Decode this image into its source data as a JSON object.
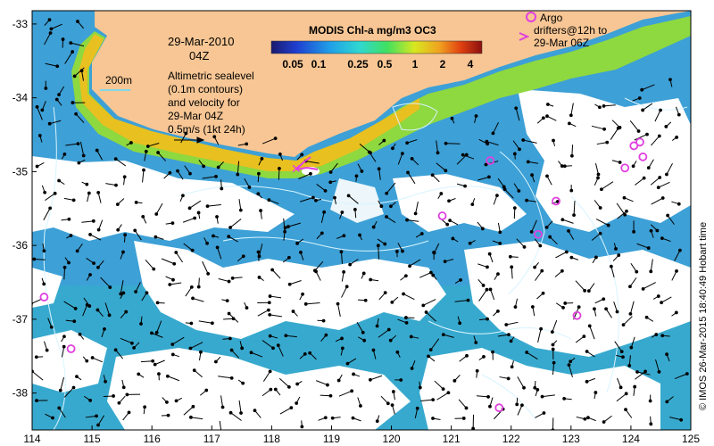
{
  "map": {
    "date_line": "29-Mar-2010",
    "time_line": "04Z",
    "contour_label": "200m",
    "legend_lines": [
      "Altimetric sealevel",
      "(0.1m contours)",
      "and velocity for",
      "29-Mar 04Z",
      "0.5m/s (1kt 24h)"
    ],
    "colorbar": {
      "title": "MODIS Chl-a mg/m3 OC3",
      "ticks": [
        "0.05",
        "0.1",
        "0.25",
        "0.5",
        "1",
        "2",
        "4"
      ]
    },
    "argo_legend": {
      "line1": "Argo",
      "line2": "drifters@12h to",
      "line3": "29-Mar 06Z"
    },
    "credit": "© IMOS 26-Mar-2015 18:40:49 Hobart time",
    "x_ticks": [
      "114",
      "115",
      "116",
      "117",
      "118",
      "119",
      "120",
      "121",
      "122",
      "123",
      "124",
      "125"
    ],
    "y_ticks": [
      "-33",
      "-34",
      "-35",
      "-36",
      "-37",
      "-38"
    ],
    "colors": {
      "land": "#f7c694",
      "ocean": "#3da0d6",
      "argo": "#e040e0",
      "contour": "#d8f4ff"
    },
    "argo_floats": [
      {
        "lon": 114.2,
        "lat": -36.7
      },
      {
        "lon": 114.65,
        "lat": -37.4
      },
      {
        "lon": 120.85,
        "lat": -35.6
      },
      {
        "lon": 121.65,
        "lat": -34.85
      },
      {
        "lon": 122.45,
        "lat": -35.85
      },
      {
        "lon": 122.75,
        "lat": -35.4
      },
      {
        "lon": 123.1,
        "lat": -36.95
      },
      {
        "lon": 123.9,
        "lat": -34.95
      },
      {
        "lon": 124.05,
        "lat": -34.65
      },
      {
        "lon": 124.15,
        "lat": -34.6
      },
      {
        "lon": 124.2,
        "lat": -34.8
      },
      {
        "lon": 121.8,
        "lat": -38.2
      }
    ]
  }
}
